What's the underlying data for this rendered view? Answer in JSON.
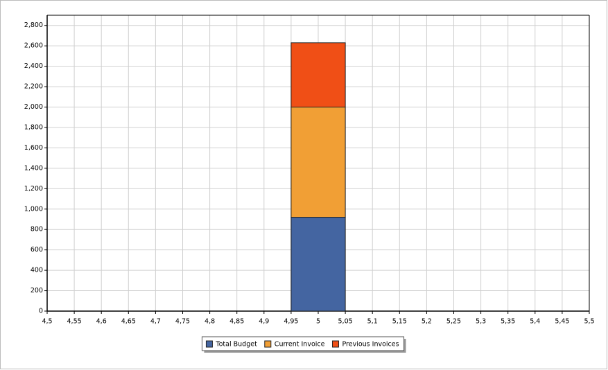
{
  "chart_data": {
    "type": "stacked_bar",
    "x": [
      5
    ],
    "bar_width": 0.1,
    "series": [
      {
        "name": "Total Budget",
        "color": "#4465a1",
        "values": [
          920
        ]
      },
      {
        "name": "Current Invoice",
        "color": "#f19f35",
        "values": [
          1080
        ]
      },
      {
        "name": "Previous Invoices",
        "color": "#f04f16",
        "values": [
          630
        ]
      }
    ],
    "xlim": [
      4.5,
      5.5
    ],
    "xticks": [
      {
        "value": 4.5,
        "label": "4,5"
      },
      {
        "value": 4.55,
        "label": "4,55"
      },
      {
        "value": 4.6,
        "label": "4,6"
      },
      {
        "value": 4.65,
        "label": "4,65"
      },
      {
        "value": 4.7,
        "label": "4,7"
      },
      {
        "value": 4.75,
        "label": "4,75"
      },
      {
        "value": 4.8,
        "label": "4,8"
      },
      {
        "value": 4.85,
        "label": "4,85"
      },
      {
        "value": 4.9,
        "label": "4,9"
      },
      {
        "value": 4.95,
        "label": "4,95"
      },
      5,
      {
        "value": 5.05,
        "label": "5,05"
      },
      {
        "value": 5.1,
        "label": "5,1"
      },
      {
        "value": 5.15,
        "label": "5,15"
      },
      {
        "value": 5.2,
        "label": "5,2"
      },
      {
        "value": 5.25,
        "label": "5,25"
      },
      {
        "value": 5.3,
        "label": "5,3"
      },
      {
        "value": 5.35,
        "label": "5,35"
      },
      {
        "value": 5.4,
        "label": "5,4"
      },
      {
        "value": 5.45,
        "label": "5,45"
      },
      {
        "value": 5.5,
        "label": "5,5"
      }
    ],
    "ylim": [
      0,
      2900
    ],
    "yticks": [
      0,
      200,
      400,
      600,
      800,
      {
        "value": 1000,
        "label": "1,000"
      },
      {
        "value": 1200,
        "label": "1,200"
      },
      {
        "value": 1400,
        "label": "1,400"
      },
      {
        "value": 1600,
        "label": "1,600"
      },
      {
        "value": 1800,
        "label": "1,800"
      },
      {
        "value": 2000,
        "label": "2,000"
      },
      {
        "value": 2200,
        "label": "2,200"
      },
      {
        "value": 2400,
        "label": "2,400"
      },
      {
        "value": 2600,
        "label": "2,600"
      },
      {
        "value": 2800,
        "label": "2,800"
      }
    ],
    "grid": true,
    "legend": "bottom"
  }
}
